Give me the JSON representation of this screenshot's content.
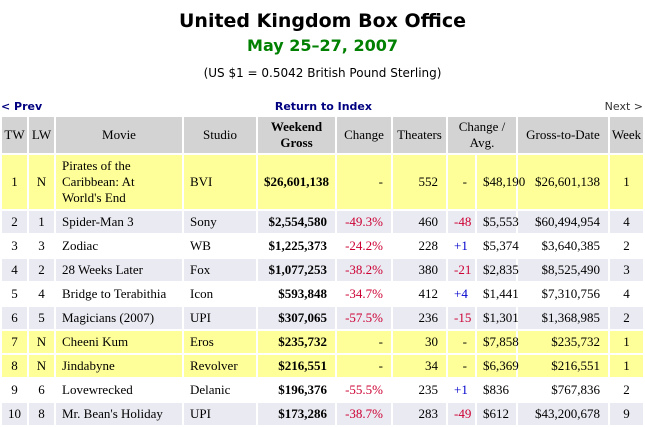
{
  "page": {
    "title": "United Kingdom Box Office",
    "subtitle": "May 25–27, 2007",
    "exchange_note": "(US $1 = 0.5042 British Pound Sterling)"
  },
  "nav": {
    "prev_label": "< Prev",
    "index_label": "Return to Index",
    "next_label": "Next >"
  },
  "colors": {
    "header_bg": "#d3d3d3",
    "new_row_bg": "#ffff99",
    "alt_row_bg": "#eaeaf2",
    "negative": "#cc0033",
    "positive": "#0000cc",
    "link_color": "#000080",
    "subtitle_color": "#008000"
  },
  "table": {
    "headers": [
      "TW",
      "LW",
      "Movie",
      "Studio",
      "Weekend Gross",
      "Change",
      "Theaters",
      "Change / Avg.",
      "Gross-to-Date",
      "Week"
    ],
    "rows": [
      {
        "tw": "1",
        "lw": "N",
        "movie": "Pirates of the Caribbean: At World's End",
        "studio": "BVI",
        "weekend_gross": "$26,601,138",
        "change": "-",
        "theaters": "552",
        "theater_change": "-",
        "avg": "$48,190",
        "gross_to_date": "$26,601,138",
        "week": "1",
        "highlight": "new"
      },
      {
        "tw": "2",
        "lw": "1",
        "movie": "Spider-Man 3",
        "studio": "Sony",
        "weekend_gross": "$2,554,580",
        "change": "-49.3%",
        "theaters": "460",
        "theater_change": "-48",
        "avg": "$5,553",
        "gross_to_date": "$60,494,954",
        "week": "4",
        "highlight": "even"
      },
      {
        "tw": "3",
        "lw": "3",
        "movie": "Zodiac",
        "studio": "WB",
        "weekend_gross": "$1,225,373",
        "change": "-24.2%",
        "theaters": "228",
        "theater_change": "+1",
        "avg": "$5,374",
        "gross_to_date": "$3,640,385",
        "week": "2",
        "highlight": ""
      },
      {
        "tw": "4",
        "lw": "2",
        "movie": "28 Weeks Later",
        "studio": "Fox",
        "weekend_gross": "$1,077,253",
        "change": "-38.2%",
        "theaters": "380",
        "theater_change": "-21",
        "avg": "$2,835",
        "gross_to_date": "$8,525,490",
        "week": "3",
        "highlight": "even"
      },
      {
        "tw": "5",
        "lw": "4",
        "movie": "Bridge to Terabithia",
        "studio": "Icon",
        "weekend_gross": "$593,848",
        "change": "-34.7%",
        "theaters": "412",
        "theater_change": "+4",
        "avg": "$1,441",
        "gross_to_date": "$7,310,756",
        "week": "4",
        "highlight": ""
      },
      {
        "tw": "6",
        "lw": "5",
        "movie": "Magicians (2007)",
        "studio": "UPI",
        "weekend_gross": "$307,065",
        "change": "-57.5%",
        "theaters": "236",
        "theater_change": "-15",
        "avg": "$1,301",
        "gross_to_date": "$1,368,985",
        "week": "2",
        "highlight": "even"
      },
      {
        "tw": "7",
        "lw": "N",
        "movie": "Cheeni Kum",
        "studio": "Eros",
        "weekend_gross": "$235,732",
        "change": "-",
        "theaters": "30",
        "theater_change": "-",
        "avg": "$7,858",
        "gross_to_date": "$235,732",
        "week": "1",
        "highlight": "new"
      },
      {
        "tw": "8",
        "lw": "N",
        "movie": "Jindabyne",
        "studio": "Revolver",
        "weekend_gross": "$216,551",
        "change": "-",
        "theaters": "34",
        "theater_change": "-",
        "avg": "$6,369",
        "gross_to_date": "$216,551",
        "week": "1",
        "highlight": "new"
      },
      {
        "tw": "9",
        "lw": "6",
        "movie": "Lovewrecked",
        "studio": "Delanic",
        "weekend_gross": "$196,376",
        "change": "-55.5%",
        "theaters": "235",
        "theater_change": "+1",
        "avg": "$836",
        "gross_to_date": "$767,836",
        "week": "2",
        "highlight": ""
      },
      {
        "tw": "10",
        "lw": "8",
        "movie": "Mr. Bean's Holiday",
        "studio": "UPI",
        "weekend_gross": "$173,286",
        "change": "-38.7%",
        "theaters": "283",
        "theater_change": "-49",
        "avg": "$612",
        "gross_to_date": "$43,200,678",
        "week": "9",
        "highlight": "even"
      }
    ]
  }
}
